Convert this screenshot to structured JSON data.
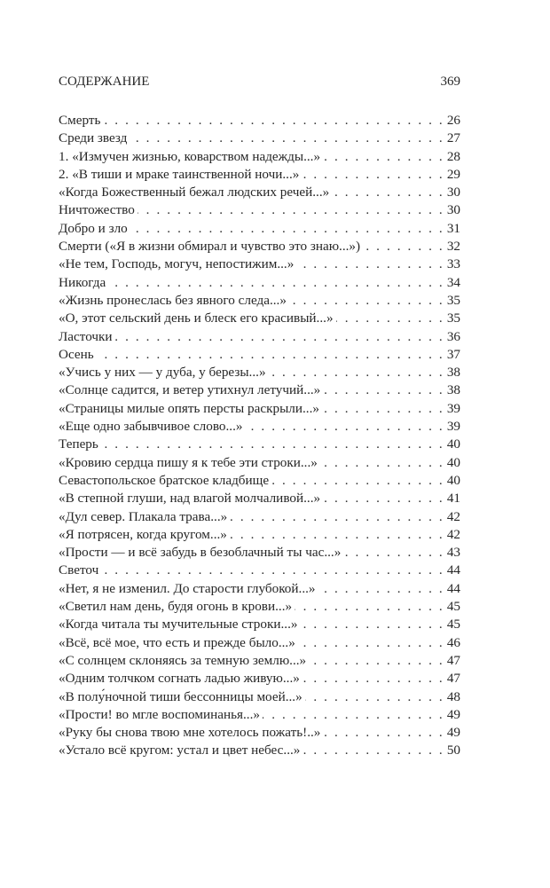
{
  "header": {
    "section_title": "СОДЕРЖАНИЕ",
    "page_number": "369"
  },
  "entries": [
    {
      "title": "Смерть",
      "page": "26"
    },
    {
      "title": "Среди звезд",
      "page": "27"
    },
    {
      "title": "1. «Измучен жизнью, коварством надежды...»",
      "page": "28"
    },
    {
      "title": "2. «В тиши и мраке таинственной ночи...»",
      "page": "29"
    },
    {
      "title": "«Когда Божественный бежал людских речей...»",
      "page": "30"
    },
    {
      "title": "Ничтожество",
      "page": "30"
    },
    {
      "title": "Добро и зло",
      "page": "31"
    },
    {
      "title": "Смерти («Я в жизни обмирал и чувство это знаю...»)",
      "page": "32"
    },
    {
      "title": "«Не тем, Господь, могуч, непостижим...»",
      "page": "33"
    },
    {
      "title": "Никогда",
      "page": "34"
    },
    {
      "title": "«Жизнь пронеслась без явного следа...»",
      "page": "35"
    },
    {
      "title": "«О, этот сельский день и блеск его красивый...»",
      "page": "35"
    },
    {
      "title": "Ласточки",
      "page": "36"
    },
    {
      "title": "Осень",
      "page": "37"
    },
    {
      "title": "«Учись у них — у дуба, у березы...»",
      "page": "38"
    },
    {
      "title": "«Солнце садится, и ветер утихнул летучий...»",
      "page": "38"
    },
    {
      "title": "«Страницы милые опять персты раскрыли...»",
      "page": "39"
    },
    {
      "title": "«Еще одно забывчивое слово...»",
      "page": "39"
    },
    {
      "title": "Теперь",
      "page": "40"
    },
    {
      "title": "«Кровию сердца пишу я к тебе эти строки...»",
      "page": "40"
    },
    {
      "title": "Севастопольское братское кладбище",
      "page": "40"
    },
    {
      "title": "«В степной глуши, над влагой молчаливой...»",
      "page": "41"
    },
    {
      "title": "«Дул север. Плакала трава...»",
      "page": "42"
    },
    {
      "title": "«Я потрясен, когда кругом...»",
      "page": "42"
    },
    {
      "title": "«Прости — и всё забудь в безоблачный ты час...»",
      "page": "43"
    },
    {
      "title": "Светоч",
      "page": "44"
    },
    {
      "title": "«Нет, я не изменил. До старости глубокой...»",
      "page": "44"
    },
    {
      "title": "«Светил нам день, будя огонь в крови...»",
      "page": "45"
    },
    {
      "title": "«Когда читала ты мучительные строки...»",
      "page": "45"
    },
    {
      "title": "«Всё, всё мое, что есть и прежде было...»",
      "page": "46"
    },
    {
      "title": "«С солнцем склоняясь за темную землю...»",
      "page": "47"
    },
    {
      "title": "«Одним толчком согнать ладью живую...»",
      "page": "47"
    },
    {
      "title": "«В полу́ночной тиши бессонницы моей...»",
      "page": "48"
    },
    {
      "title": "«Прости! во мгле воспоминанья...»",
      "page": "49"
    },
    {
      "title": "«Руку бы снова твою мне хотелось пожать!..»",
      "page": "49"
    },
    {
      "title": "«Устало всё кругом: устал и цвет небес...»",
      "page": "50"
    }
  ]
}
